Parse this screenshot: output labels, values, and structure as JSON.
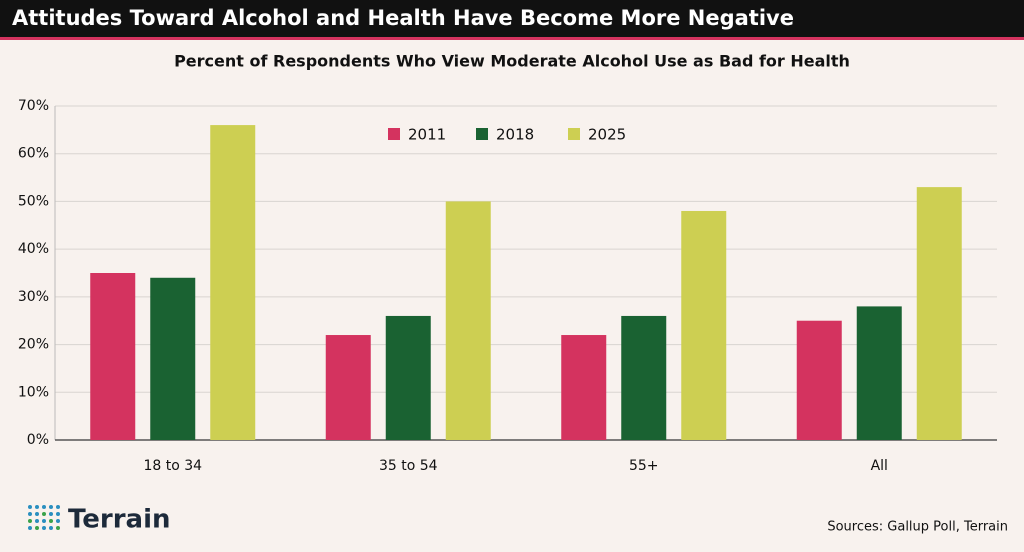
{
  "header": {
    "title": "Attitudes Toward Alcohol and Health Have Become More Negative"
  },
  "chart_data": {
    "type": "bar",
    "title": "Percent of Respondents Who View Moderate Alcohol Use as Bad for Health",
    "categories": [
      "18 to 34",
      "35 to 54",
      "55+",
      "All"
    ],
    "series": [
      {
        "name": "2011",
        "color": "#d4335f",
        "values": [
          35,
          22,
          22,
          25
        ]
      },
      {
        "name": "2018",
        "color": "#1a6232",
        "values": [
          34,
          26,
          26,
          28
        ]
      },
      {
        "name": "2025",
        "color": "#cdcf52",
        "values": [
          66,
          50,
          48,
          53
        ]
      }
    ],
    "ylim": [
      0,
      70
    ],
    "yticks": [
      {
        "value": 0,
        "label": "0%"
      },
      {
        "value": 10,
        "label": "10%"
      },
      {
        "value": 20,
        "label": "20%"
      },
      {
        "value": 30,
        "label": "30%"
      },
      {
        "value": 40,
        "label": "40%"
      },
      {
        "value": 50,
        "label": "50%"
      },
      {
        "value": 60,
        "label": "60%"
      },
      {
        "value": 70,
        "label": "70%"
      }
    ],
    "grid": true,
    "legend": "top"
  },
  "footer": {
    "logo": "Terrain",
    "source": "Sources: Gallup Poll, Terrain"
  }
}
